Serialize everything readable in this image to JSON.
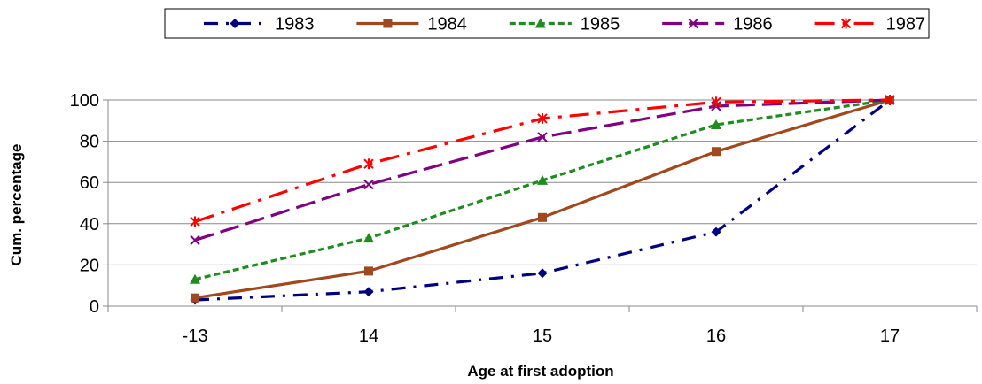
{
  "chart_data": {
    "type": "line",
    "title": "",
    "xlabel": "Age at first adoption",
    "ylabel": "Cum. percentage",
    "categories": [
      "-13",
      "14",
      "15",
      "16",
      "17"
    ],
    "ylim": [
      0,
      100
    ],
    "yticks": [
      "0",
      "20",
      "40",
      "60",
      "80",
      "100"
    ],
    "grid": "horizontal",
    "legend_position": "top",
    "series": [
      {
        "name": "1983",
        "values": [
          3,
          7,
          16,
          36,
          100
        ],
        "color": "#00007F",
        "dash": "dash-dot",
        "marker": "diamond"
      },
      {
        "name": "1984",
        "values": [
          4,
          17,
          43,
          75,
          100
        ],
        "color": "#A0481E",
        "dash": "solid",
        "marker": "square"
      },
      {
        "name": "1985",
        "values": [
          13,
          33,
          61,
          88,
          100
        ],
        "color": "#1E8C1E",
        "dash": "dash",
        "marker": "triangle"
      },
      {
        "name": "1986",
        "values": [
          32,
          59,
          82,
          97,
          100
        ],
        "color": "#800080",
        "dash": "long-dash",
        "marker": "x"
      },
      {
        "name": "1987",
        "values": [
          41,
          69,
          91,
          99,
          100
        ],
        "color": "#FF0000",
        "dash": "long-dash-dot",
        "marker": "star"
      }
    ]
  }
}
